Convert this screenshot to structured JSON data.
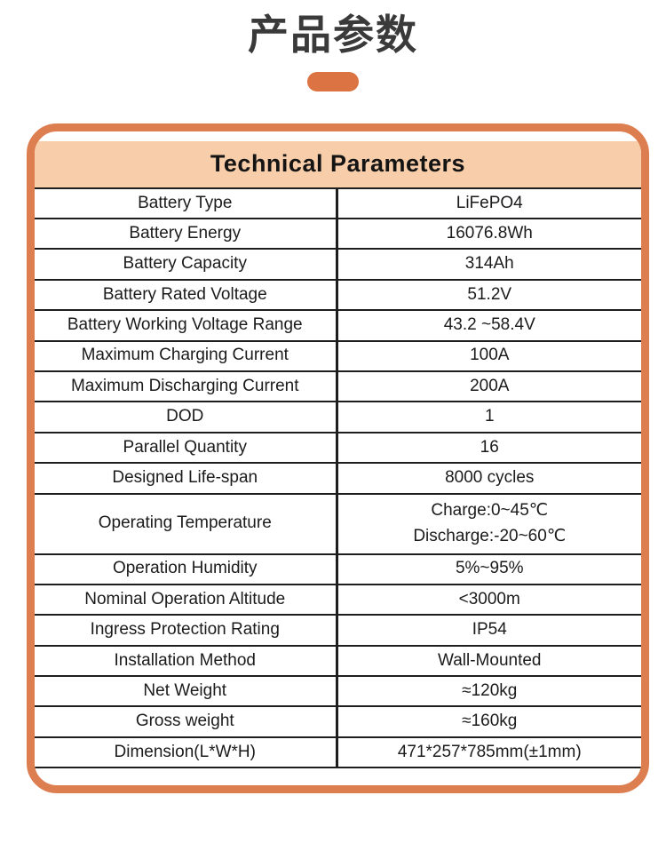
{
  "header": {
    "title_cn": "产品参数"
  },
  "colors": {
    "accent_pill_orange": "#dc7342",
    "card_border_orange": "#dd7e50",
    "header_band_peach": "#f8cda9",
    "table_line_black": "#1e1e1e",
    "text_dark": "#1b1b1b"
  },
  "table": {
    "title": "Technical Parameters",
    "columns": [
      "parameter",
      "value"
    ],
    "rows": [
      {
        "label": "Battery Type",
        "value": "LiFePO4"
      },
      {
        "label": "Battery Energy",
        "value": "16076.8Wh"
      },
      {
        "label": "Battery Capacity",
        "value": "314Ah"
      },
      {
        "label": "Battery Rated Voltage",
        "value": "51.2V"
      },
      {
        "label": "Battery Working Voltage Range",
        "value": "43.2 ~58.4V"
      },
      {
        "label": "Maximum Charging Current",
        "value": "100A"
      },
      {
        "label": "Maximum Discharging Current",
        "value": "200A"
      },
      {
        "label": "DOD",
        "value": "1"
      },
      {
        "label": "Parallel Quantity",
        "value": "16"
      },
      {
        "label": "Designed Life-span",
        "value": "8000 cycles"
      },
      {
        "label": "Operating Temperature",
        "value": "Charge:0~45℃\nDischarge:-20~60℃",
        "tall": true
      },
      {
        "label": "Operation Humidity",
        "value": "5%~95%"
      },
      {
        "label": "Nominal Operation Altitude",
        "value": "<3000m"
      },
      {
        "label": "Ingress Protection Rating",
        "value": "IP54"
      },
      {
        "label": "Installation Method",
        "value": "Wall-Mounted"
      },
      {
        "label": "Net Weight",
        "value": "≈120kg"
      },
      {
        "label": "Gross weight",
        "value": "≈160kg"
      },
      {
        "label": "Dimension(L*W*H)",
        "value": "471*257*785mm(±1mm)"
      }
    ]
  }
}
